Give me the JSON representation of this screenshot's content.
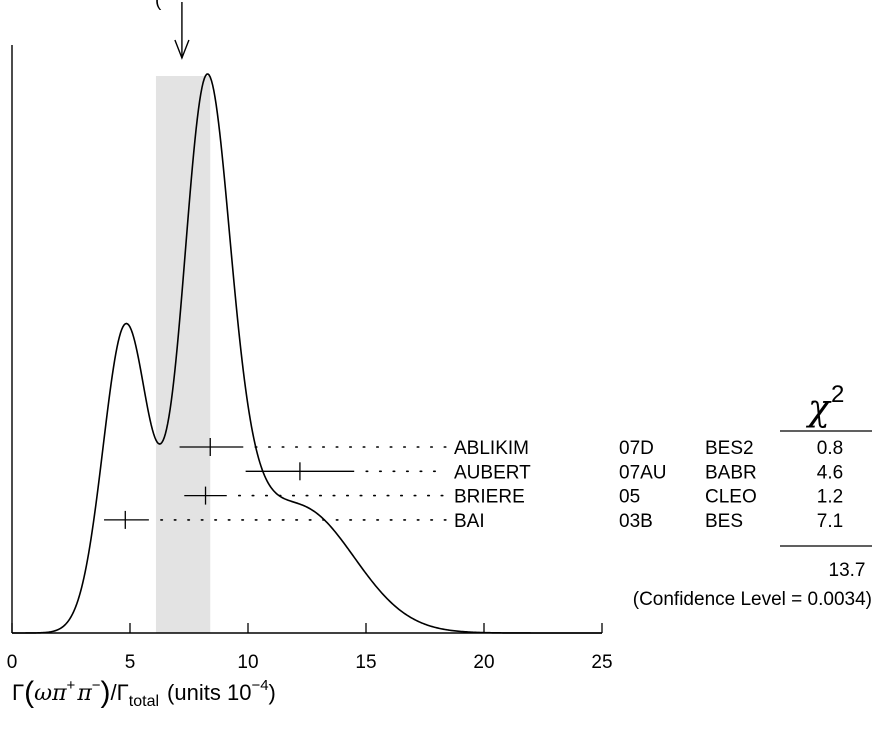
{
  "chart_data": {
    "type": "ideogram",
    "header_text": "(",
    "x_axis": {
      "range": [
        0,
        25
      ],
      "ticks": [
        0,
        5,
        10,
        15,
        20,
        25
      ],
      "tick_labels": [
        "0",
        "5",
        "10",
        "15",
        "20",
        "25"
      ],
      "title": {
        "gamma": "Γ",
        "open": "(",
        "omega": "ω",
        "pi": "π",
        "plus": "+",
        "minus": "−",
        "close": ")",
        "slash": "/",
        "gamma_total": "Γ",
        "total_sub": "total",
        "units": "(units 10",
        "exp": "−4",
        "units_close": ")"
      }
    },
    "weighted_average": {
      "value": 7.2,
      "band": [
        6.1,
        8.4
      ]
    },
    "measurements": [
      {
        "name": "ABLIKIM",
        "year": "07D",
        "experiment": "BES2",
        "value": 8.4,
        "error": [
          7.1,
          9.8
        ],
        "chi2": "0.8"
      },
      {
        "name": "AUBERT",
        "year": "07AU",
        "experiment": "BABR",
        "value": 12.2,
        "error": [
          9.9,
          14.5
        ],
        "chi2": "4.6"
      },
      {
        "name": "BRIERE",
        "year": "05",
        "experiment": "CLEO",
        "value": 8.2,
        "error": [
          7.3,
          9.1
        ],
        "chi2": "1.2"
      },
      {
        "name": "BAI",
        "year": "03B",
        "experiment": "BES",
        "value": 4.8,
        "error": [
          3.9,
          5.8
        ],
        "chi2": "7.1"
      }
    ],
    "chi2_header": "χ",
    "chi2_superscript": "2",
    "chi2_total": "13.7",
    "confidence_level": "(Confidence Level = 0.0034)"
  }
}
